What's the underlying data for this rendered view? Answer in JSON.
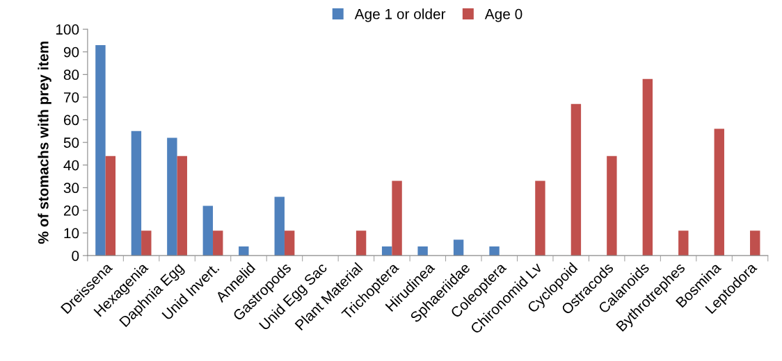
{
  "chart_data": {
    "type": "bar",
    "ylabel": "% of stomachs with prey item",
    "categories": [
      "Dreissena",
      "Hexagenia",
      "Daphnia Egg",
      "Unid Invert.",
      "Annelid",
      "Gastropods",
      "Unid Egg Sac",
      "Plant Material",
      "Trichoptera",
      "Hirudinea",
      "Sphaeriidae",
      "Coleoptera",
      "Chironomid Lv",
      "Cyclopoid",
      "Ostracods",
      "Calanoids",
      "Bythrotrephes",
      "Bosmina",
      "Leptodora"
    ],
    "series": [
      {
        "name": "Age 1 or older",
        "color": "#4f81bd",
        "values": [
          93,
          55,
          52,
          22,
          4,
          26,
          0,
          0,
          4,
          4,
          7,
          4,
          0,
          0,
          0,
          0,
          0,
          0,
          0
        ]
      },
      {
        "name": "Age 0",
        "color": "#c0504d",
        "values": [
          44,
          11,
          44,
          11,
          0,
          11,
          0,
          11,
          33,
          0,
          0,
          0,
          33,
          67,
          44,
          78,
          11,
          56,
          11
        ]
      }
    ],
    "ylim": [
      0,
      100
    ],
    "yticks": [
      0,
      10,
      20,
      30,
      40,
      50,
      60,
      70,
      80,
      90,
      100
    ],
    "grid": false,
    "legend": "top"
  }
}
